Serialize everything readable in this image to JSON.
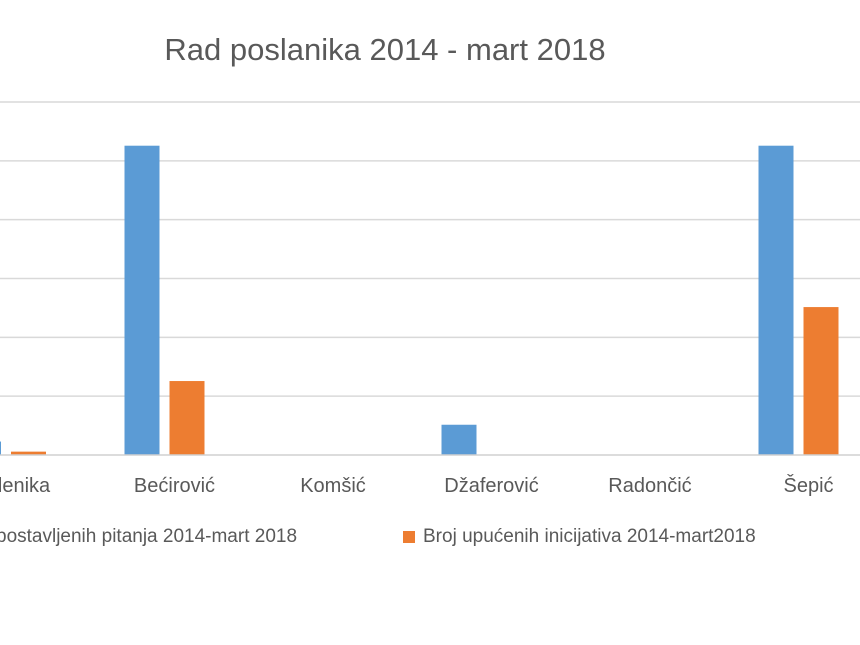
{
  "chart_data": {
    "type": "bar",
    "title": "Rad poslanika 2014 - mart 2018",
    "categories": [
      "lenika",
      "Bećirović",
      "Komšić",
      "Džaferović",
      "Radončić",
      "Šepić"
    ],
    "series": [
      {
        "name": "postavljenih pitanja 2014-mart 2018",
        "color": "#5b9bd5",
        "values": [
          4,
          92,
          0,
          9,
          0,
          92
        ]
      },
      {
        "name": "Broj upućenih inicijativa 2014-mart2018",
        "color": "#ed7d31",
        "values": [
          1,
          22,
          0,
          0,
          0,
          44
        ]
      }
    ],
    "ylim": [
      0,
      105
    ],
    "gridlines": [
      0,
      17.5,
      35,
      52.5,
      70,
      87.5,
      105
    ],
    "grid": true,
    "legend": "bottom",
    "xlabel": "",
    "ylabel": ""
  }
}
